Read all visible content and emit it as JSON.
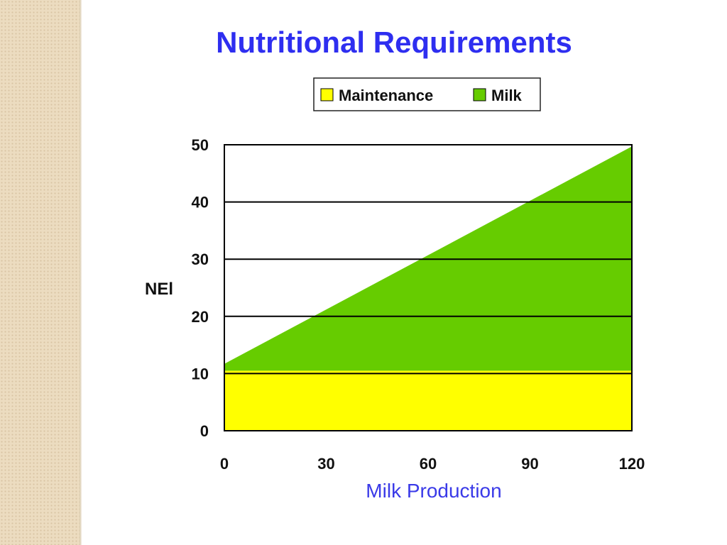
{
  "slide": {
    "title": "Nutritional Requirements"
  },
  "colors": {
    "title": "#2e2ef0",
    "xlabel": "#3a3ae8",
    "maintenance": "#ffff00",
    "milk": "#66cc00",
    "grid": "#000000",
    "side_strip": "#ecdcc0"
  },
  "chart_data": {
    "type": "area",
    "stacked": true,
    "title": "Nutritional Requirements",
    "xlabel": "Milk Production",
    "ylabel": "NEl",
    "x": [
      0,
      120
    ],
    "xticks": [
      0,
      30,
      60,
      90,
      120
    ],
    "yticks": [
      0,
      10,
      20,
      30,
      40,
      50
    ],
    "xlim": [
      0,
      120
    ],
    "ylim": [
      0,
      50
    ],
    "grid": "horizontal",
    "legend_position": "top-center",
    "series": [
      {
        "name": "Maintenance",
        "color": "#ffff00",
        "values": [
          10.5,
          10.5
        ]
      },
      {
        "name": "Milk",
        "color": "#66cc00",
        "values": [
          1.2,
          39.2
        ]
      }
    ]
  }
}
